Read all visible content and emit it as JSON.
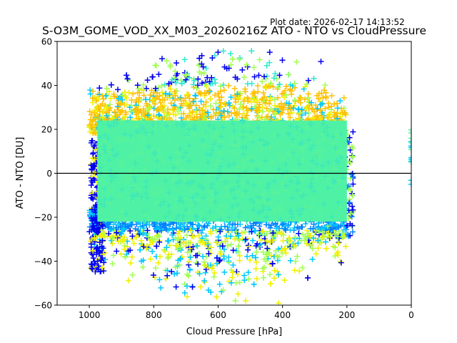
{
  "plot_date": "Plot date: 2026-02-17 14:13:52",
  "chart_data": {
    "type": "scatter",
    "title": "S-O3M_GOME_VOD_XX_M03_20260216Z ATO - NTO vs CloudPressure",
    "xlabel": "Cloud Pressure [hPa]",
    "ylabel": "ATO - NTO [DU]",
    "xlim": [
      1100,
      0
    ],
    "ylim": [
      -60,
      60
    ],
    "xticks": [
      1000,
      800,
      600,
      400,
      200,
      0
    ],
    "xtick_labels": [
      "1000",
      "800",
      "600",
      "400",
      "200",
      "0"
    ],
    "yticks": [
      60,
      40,
      20,
      0,
      -20,
      -40,
      -60
    ],
    "ytick_labels": [
      "60",
      "40",
      "20",
      "0",
      "−20",
      "−40",
      "−60"
    ],
    "reference_line": {
      "y": 0,
      "color": "#000000"
    },
    "marker": "+",
    "grid": false,
    "colormap": [
      "#0000f0",
      "#0080ff",
      "#00c8ff",
      "#2ce8d0",
      "#50f0a0",
      "#a0ff50",
      "#f0f000",
      "#ffc000"
    ],
    "point_cloud": {
      "core_x_range": [
        975,
        200
      ],
      "core_y_range": [
        -22,
        24
      ],
      "core_color": "#4ff2a4",
      "outlier_x_range": [
        1000,
        110
      ],
      "outlier_y_range": [
        -60,
        60
      ],
      "edge_column_x": 0,
      "edge_column_y_range": [
        -8,
        20
      ]
    }
  }
}
